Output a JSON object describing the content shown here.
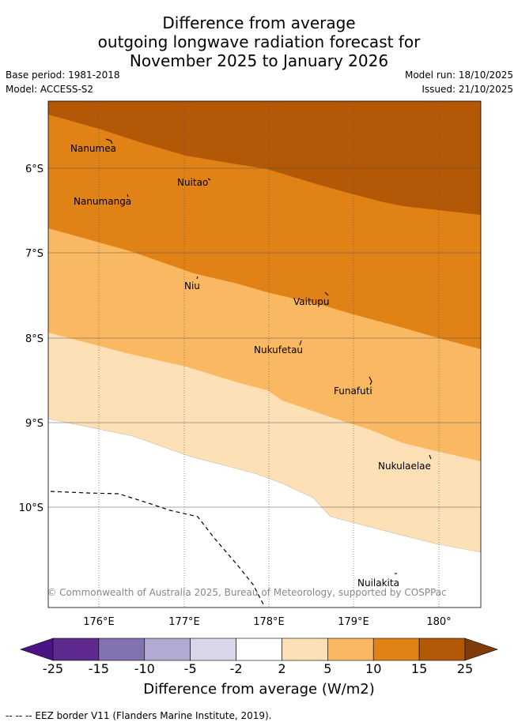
{
  "title": {
    "line1": "Difference from average",
    "line2": "outgoing longwave radiation forecast for",
    "line3": "November 2025 to January 2026"
  },
  "meta": {
    "base_period": "Base period: 1981-2018",
    "model": "Model: ACCESS-S2",
    "model_run": "Model run: 18/10/2025",
    "issued": "Issued: 21/10/2025"
  },
  "map": {
    "lat_labels": [
      "6°S",
      "7°S",
      "8°S",
      "9°S",
      "10°S"
    ],
    "lon_labels": [
      "176°E",
      "177°E",
      "178°E",
      "179°E",
      "180°"
    ],
    "islands": [
      {
        "name": "Nanumea"
      },
      {
        "name": "Nuitao"
      },
      {
        "name": "Nanumanga"
      },
      {
        "name": "Niu"
      },
      {
        "name": "Vaitupu"
      },
      {
        "name": "Nukufetau"
      },
      {
        "name": "Funafuti"
      },
      {
        "name": "Nukulaelae"
      },
      {
        "name": "Nuilakita"
      }
    ],
    "copyright": "© Commonwealth of Australia 2025, Bureau of Meteorology, supported by COSPPac"
  },
  "colorbar": {
    "ticks": [
      "-25",
      "-15",
      "-10",
      "-5",
      "-2",
      "2",
      "5",
      "10",
      "15",
      "25"
    ],
    "colors": [
      "#4a1486",
      "#5e2a8f",
      "#8272b0",
      "#b3aad4",
      "#d8d7ea",
      "#ffffff",
      "#fde0b6",
      "#fbb862",
      "#e08216",
      "#b35806",
      "#7f3b08"
    ],
    "title": "Difference from average (W/m2)"
  },
  "footer": "-- -- -- EEZ border V11 (Flanders Marine Institute, 2019)."
}
